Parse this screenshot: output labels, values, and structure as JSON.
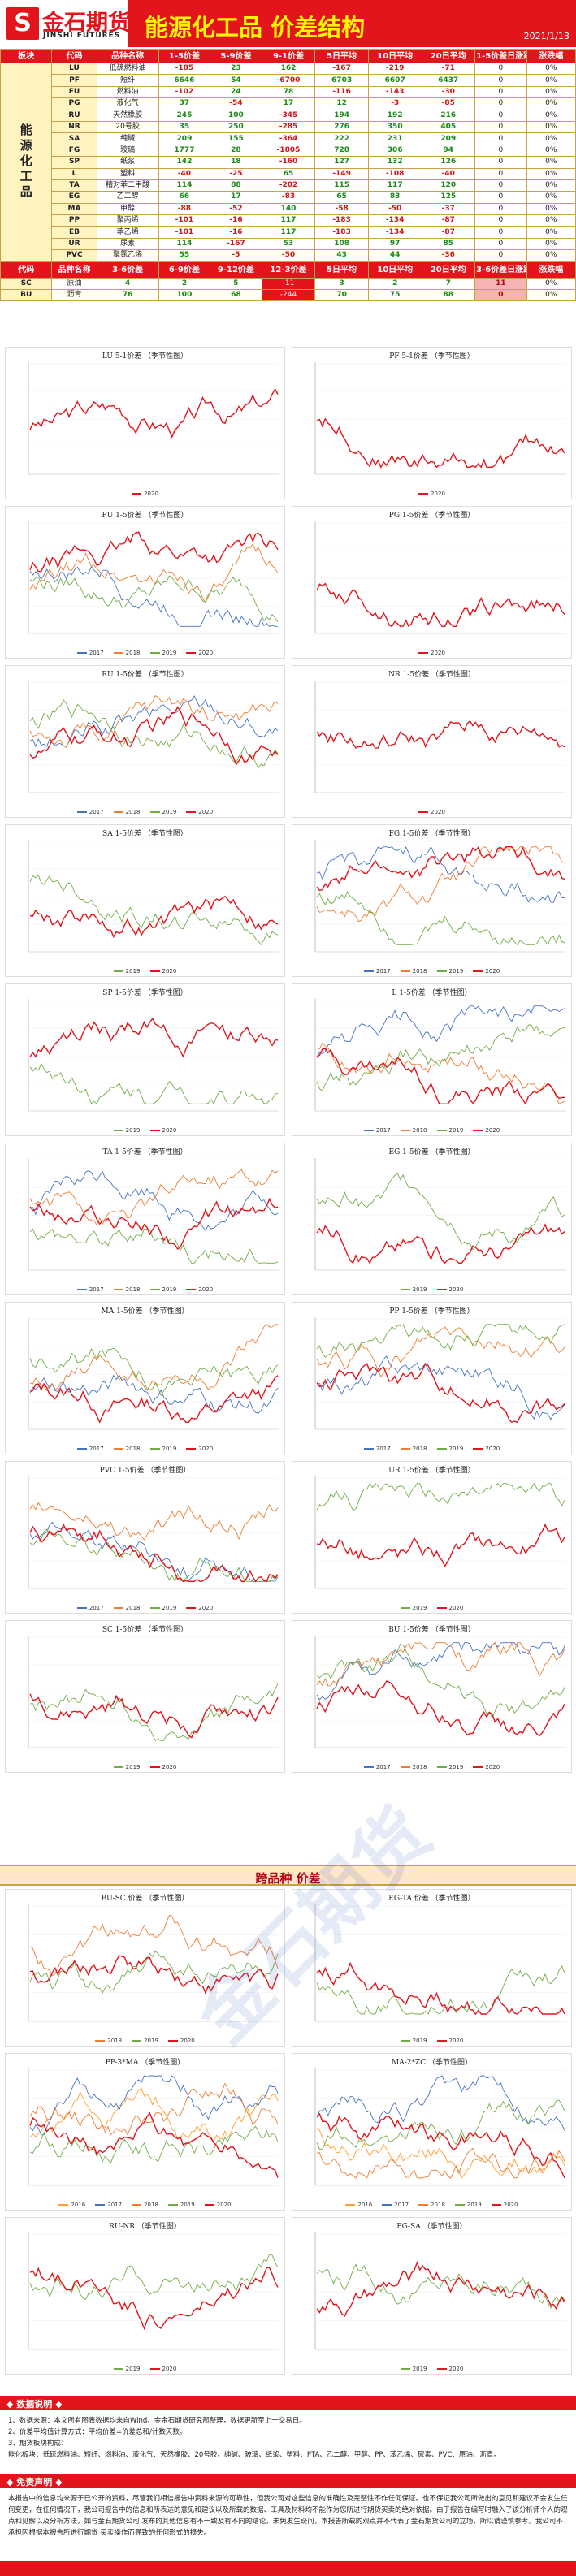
{
  "header": {
    "logo_cn": "金石期货",
    "logo_en": "JINSHI FUTURES",
    "title": "能源化工品 价差结构",
    "date": "2021/1/13"
  },
  "table": {
    "sector_label": "能源化工品",
    "headers": [
      "板块",
      "代码",
      "品种名称",
      "1-5价差",
      "5-9价差",
      "9-1价差",
      "5日平均",
      "10日平均",
      "20日平均",
      "1-5价差日涨跌",
      "涨跌幅"
    ],
    "rows": [
      {
        "code": "LU",
        "name": "低硫燃料油",
        "v1": "-185",
        "v2": "23",
        "v3": "162",
        "v4": "-167",
        "v5": "-219",
        "v6": "-71",
        "v7": "0",
        "v8": "0%"
      },
      {
        "code": "PF",
        "name": "短纤",
        "v1": "6646",
        "v2": "54",
        "v3": "-6700",
        "v4": "6703",
        "v5": "6607",
        "v6": "6437",
        "v7": "0",
        "v8": "0%"
      },
      {
        "code": "FU",
        "name": "燃料油",
        "v1": "-102",
        "v2": "24",
        "v3": "78",
        "v4": "-116",
        "v5": "-143",
        "v6": "-30",
        "v7": "0",
        "v8": "0%"
      },
      {
        "code": "PG",
        "name": "液化气",
        "v1": "37",
        "v2": "-54",
        "v3": "17",
        "v4": "12",
        "v5": "-3",
        "v6": "-85",
        "v7": "0",
        "v8": "0%"
      },
      {
        "code": "RU",
        "name": "天然橡胶",
        "v1": "245",
        "v2": "100",
        "v3": "-345",
        "v4": "194",
        "v5": "192",
        "v6": "216",
        "v7": "0",
        "v8": "0%"
      },
      {
        "code": "NR",
        "name": "20号胶",
        "v1": "35",
        "v2": "250",
        "v3": "-285",
        "v4": "276",
        "v5": "350",
        "v6": "405",
        "v7": "0",
        "v8": "0%"
      },
      {
        "code": "SA",
        "name": "纯碱",
        "v1": "209",
        "v2": "155",
        "v3": "-364",
        "v4": "222",
        "v5": "231",
        "v6": "209",
        "v7": "0",
        "v8": "0%"
      },
      {
        "code": "FG",
        "name": "玻璃",
        "v1": "1777",
        "v2": "28",
        "v3": "-1805",
        "v4": "728",
        "v5": "306",
        "v6": "94",
        "v7": "0",
        "v8": "0%"
      },
      {
        "code": "SP",
        "name": "纸浆",
        "v1": "142",
        "v2": "18",
        "v3": "-160",
        "v4": "127",
        "v5": "132",
        "v6": "126",
        "v7": "0",
        "v8": "0%"
      },
      {
        "code": "L",
        "name": "塑料",
        "v1": "-40",
        "v2": "-25",
        "v3": "65",
        "v4": "-149",
        "v5": "-108",
        "v6": "-40",
        "v7": "0",
        "v8": "0%"
      },
      {
        "code": "TA",
        "name": "精对苯二甲酸",
        "v1": "114",
        "v2": "88",
        "v3": "-202",
        "v4": "115",
        "v5": "117",
        "v6": "120",
        "v7": "0",
        "v8": "0%"
      },
      {
        "code": "EG",
        "name": "乙二醇",
        "v1": "66",
        "v2": "17",
        "v3": "-83",
        "v4": "65",
        "v5": "83",
        "v6": "125",
        "v7": "0",
        "v8": "0%"
      },
      {
        "code": "MA",
        "name": "甲醇",
        "v1": "-88",
        "v2": "-52",
        "v3": "140",
        "v4": "-58",
        "v5": "-50",
        "v6": "-37",
        "v7": "0",
        "v8": "0%"
      },
      {
        "code": "PP",
        "name": "聚丙烯",
        "v1": "-101",
        "v2": "-16",
        "v3": "117",
        "v4": "-183",
        "v5": "-134",
        "v6": "-87",
        "v7": "0",
        "v8": "0%"
      },
      {
        "code": "EB",
        "name": "苯乙烯",
        "v1": "-101",
        "v2": "-16",
        "v3": "117",
        "v4": "-183",
        "v5": "-134",
        "v6": "-87",
        "v7": "0",
        "v8": "0%"
      },
      {
        "code": "UR",
        "name": "尿素",
        "v1": "114",
        "v2": "-167",
        "v3": "53",
        "v4": "108",
        "v5": "97",
        "v6": "85",
        "v7": "0",
        "v8": "0%"
      },
      {
        "code": "PVC",
        "name": "聚氯乙烯",
        "v1": "55",
        "v2": "-5",
        "v3": "-50",
        "v4": "43",
        "v5": "44",
        "v6": "-36",
        "v7": "0",
        "v8": "0%"
      }
    ],
    "oil_headers": [
      "代码",
      "品种名称",
      "3-6价差",
      "6-9价差",
      "9-12价差",
      "12-3价差",
      "5日平均",
      "10日平均",
      "20日平均",
      "3-6价差日涨跌",
      "涨跌幅"
    ],
    "oil_rows": [
      {
        "code": "SC",
        "name": "原油",
        "v1": "4",
        "v2": "2",
        "v3": "5",
        "v4": "-11",
        "v5": "3",
        "v6": "2",
        "v7": "7",
        "v8": "11",
        "v9": "0%"
      },
      {
        "code": "BU",
        "name": "沥青",
        "v1": "76",
        "v2": "100",
        "v3": "68",
        "v4": "-244",
        "v5": "70",
        "v6": "75",
        "v7": "88",
        "v8": "0",
        "v9": "0%"
      }
    ]
  },
  "charts": [
    {
      "title": "LU 5-1价差 （季节性图）",
      "legend": [
        "2020"
      ]
    },
    {
      "title": "PF 5-1价差 （季节性图）",
      "legend": [
        "2020"
      ]
    },
    {
      "title": "FU 1-5价差 （季节性图）",
      "legend": [
        "2017",
        "2018",
        "2019",
        "2020"
      ]
    },
    {
      "title": "PG 1-5价差 （季节性图）",
      "legend": [
        "2020"
      ]
    },
    {
      "title": "RU 1-5价差 （季节性图）",
      "legend": [
        "2017",
        "2018",
        "2019",
        "2020"
      ]
    },
    {
      "title": "NR 1-5价差 （季节性图）",
      "legend": [
        "2020"
      ]
    },
    {
      "title": "SA 1-5价差 （季节性图）",
      "legend": [
        "2019",
        "2020"
      ]
    },
    {
      "title": "FG 1-5价差 （季节性图）",
      "legend": [
        "2017",
        "2018",
        "2019",
        "2020"
      ]
    },
    {
      "title": "SP 1-5价差 （季节性图）",
      "legend": [
        "2019",
        "2020"
      ]
    },
    {
      "title": "L 1-5价差 （季节性图）",
      "legend": [
        "2017",
        "2018",
        "2019",
        "2020"
      ]
    },
    {
      "title": "TA 1-5价差 （季节性图）",
      "legend": [
        "2017",
        "2018",
        "2019",
        "2020"
      ]
    },
    {
      "title": "EG 1-5价差 （季节性图）",
      "legend": [
        "2019",
        "2020"
      ]
    },
    {
      "title": "MA 1-5价差 （季节性图）",
      "legend": [
        "2017",
        "2018",
        "2019",
        "2020"
      ]
    },
    {
      "title": "PP 1-5价差 （季节性图）",
      "legend": [
        "2017",
        "2018",
        "2019",
        "2020"
      ]
    },
    {
      "title": "PVC 1-5价差 （季节性图）",
      "legend": [
        "2017",
        "2018",
        "2019",
        "2020"
      ]
    },
    {
      "title": "UR 1-5价差 （季节性图）",
      "legend": [
        "2019",
        "2020"
      ]
    },
    {
      "title": "SC 1-5价差 （季节性图）",
      "legend": [
        "2019",
        "2020"
      ]
    },
    {
      "title": "BU 1-5价差 （季节性图）",
      "legend": [
        "2017",
        "2018",
        "2019",
        "2020"
      ]
    }
  ],
  "cross_banner": "跨品种 价差",
  "cross_charts": [
    {
      "title": "BU-SC 价差 （季节性图）",
      "legend": [
        "2018",
        "2019",
        "2020"
      ]
    },
    {
      "title": "EG-TA 价差 （季节性图）",
      "legend": [
        "2019",
        "2020"
      ]
    },
    {
      "title": "PP-3*MA （季节性图）",
      "legend": [
        "2016",
        "2017",
        "2018",
        "2019",
        "2020"
      ]
    },
    {
      "title": "MA-2*ZC （季节性图）",
      "legend": [
        "2016",
        "2017",
        "2018",
        "2019",
        "2020"
      ]
    },
    {
      "title": "RU-NR （季节性图）",
      "legend": [
        "2019",
        "2020"
      ]
    },
    {
      "title": "FG-SA （季节性图）",
      "legend": [
        "2019",
        "2020"
      ]
    }
  ],
  "notes_title": "◆ 数据说明 ◆",
  "notes": [
    "1、数据来源：本文所有图表数据均来自Wind、金金石期货研究部整理，数据更新至上一交易日。",
    "2、价差平均值计算方式：平均价差=价差总和/计数天数。",
    "3、期货板块构成：",
    "能化板块：低硫燃料油、短纤、燃料油、液化气、天然橡胶、20号胶、纯碱、玻璃、纸浆、塑料、PTA、乙二醇、甲醇、PP、苯乙烯、尿素、PVC、原油、沥青。"
  ],
  "disclaimer_title": "◆ 免责声明 ◆",
  "disclaimer": "本报告中的信息均来源于已公开的资料，尽管我们相信报告中资料来源的可靠性，但我公司对这些信息的准确性及完整性不作任何保证。也不保证我公司所做出的意见和建议不会发生任何变更，在任何情况下，我公司报告中的信息和所表达的意见和建议以及所载的数据、工具及材料均不能作为您所进行期货买卖的绝对依据。由于报告在编写时融入了该分析师个人的观点和见解以及分析方法，如与金石期货公司 发布的其他信息有不一致及有不同的结论，未免发生疑问，本报告所载的观点并不代表了金石期货公司的立场，所以请谨慎参考。我公司不承担因根据本报告所进行期货 买卖操作而导致的任何形式的损失。",
  "watermark": "金石期货",
  "colors": {
    "primary": "#e3141b",
    "accent": "#fff700",
    "s2016": "#ff9f2f",
    "s2017": "#4472c4",
    "s2018": "#ed7d31",
    "s2019": "#70ad47",
    "s2020": "#e3141b",
    "purple": "#7030a0",
    "cyan": "#5bc0eb"
  }
}
